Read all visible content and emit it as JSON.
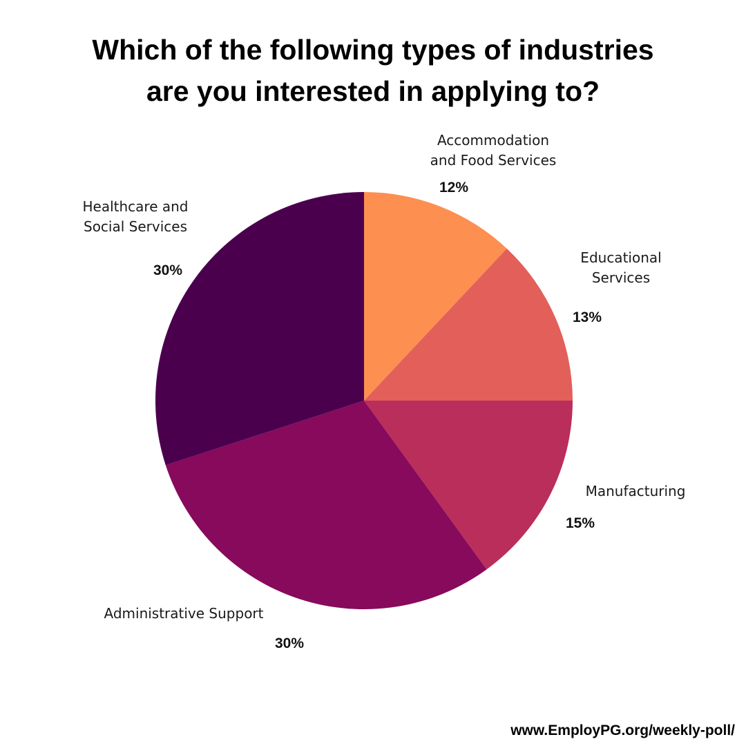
{
  "chart_data": {
    "type": "pie",
    "title_lines": [
      "Which of the following types of industries",
      "are you interested in applying to?"
    ],
    "slices": [
      {
        "label_lines": [
          "Accommodation",
          "and Food Services"
        ],
        "value": 12,
        "value_label": "12%",
        "color": "#fd8f51"
      },
      {
        "label_lines": [
          "Educational",
          "Services"
        ],
        "value": 13,
        "value_label": "13%",
        "color": "#e35f5a"
      },
      {
        "label_lines": [
          "Manufacturing"
        ],
        "value": 15,
        "value_label": "15%",
        "color": "#b92e5a"
      },
      {
        "label_lines": [
          "Administrative Support"
        ],
        "value": 30,
        "value_label": "30%",
        "color": "#870a5c"
      },
      {
        "label_lines": [
          "Healthcare and",
          "Social Services"
        ],
        "value": 30,
        "value_label": "30%",
        "color": "#4b004e"
      }
    ]
  },
  "footer": {
    "url": "www.EmployPG.org/weekly-poll/"
  }
}
